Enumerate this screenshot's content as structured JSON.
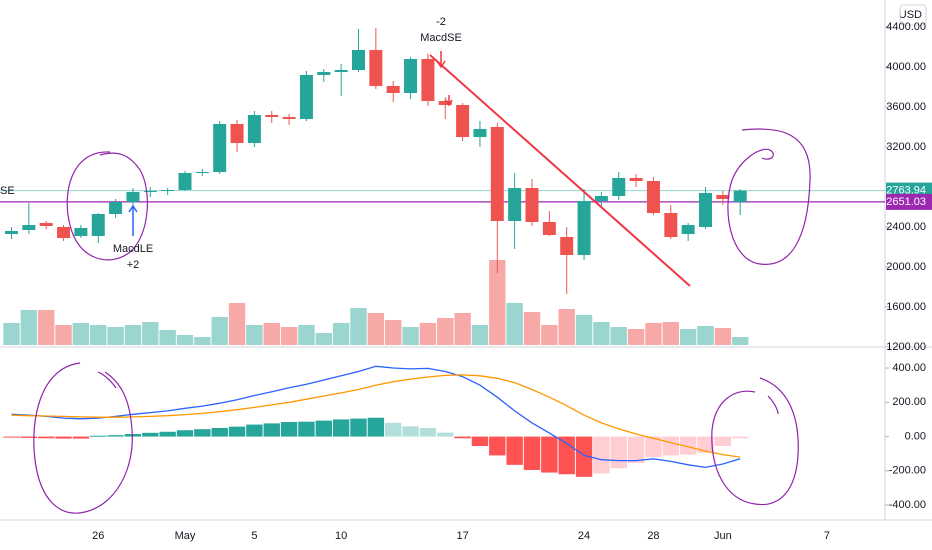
{
  "chart_data": {
    "type": "candlestick",
    "currency": "USD",
    "categories": [
      null,
      null,
      null,
      null,
      null,
      "26",
      null,
      null,
      null,
      null,
      "May",
      null,
      null,
      null,
      "5",
      null,
      null,
      null,
      null,
      "10",
      null,
      null,
      null,
      null,
      null,
      null,
      "17",
      null,
      null,
      null,
      null,
      null,
      null,
      "24",
      null,
      null,
      null,
      "28",
      null,
      null,
      null,
      "Jun",
      null,
      null,
      null,
      null,
      null,
      "7"
    ],
    "open": [
      2330,
      2370,
      2440,
      2400,
      2310,
      2310,
      2530,
      2650,
      2750,
      2760,
      2770,
      2940,
      2950,
      3430,
      3240,
      3520,
      3500,
      3480,
      3920,
      3950,
      3970,
      4170,
      3810,
      3740,
      4080,
      3660,
      3620,
      3300,
      3400,
      2460,
      2790,
      2450,
      2300,
      2120,
      2660,
      2710,
      2890,
      2860,
      2540,
      2330,
      2400,
      2720,
      2650,
      null,
      null,
      null,
      null,
      null
    ],
    "high": [
      2400,
      2640,
      2460,
      2420,
      2420,
      2540,
      2680,
      2790,
      2800,
      2790,
      2960,
      2980,
      3460,
      3470,
      3560,
      3560,
      3530,
      3960,
      3980,
      4030,
      4380,
      4390,
      3860,
      4100,
      4130,
      3700,
      3640,
      3460,
      3440,
      2940,
      2880,
      2560,
      2400,
      2780,
      2750,
      2950,
      2930,
      2900,
      2620,
      2440,
      2800,
      2760,
      2780,
      null,
      null,
      null,
      null,
      null
    ],
    "low": [
      2280,
      2330,
      2380,
      2260,
      2290,
      2240,
      2490,
      2620,
      2700,
      2720,
      2760,
      2910,
      2930,
      3150,
      3200,
      3440,
      3420,
      3460,
      3850,
      3710,
      3950,
      3780,
      3650,
      3680,
      3610,
      3480,
      3260,
      3200,
      1940,
      2180,
      2410,
      2310,
      1730,
      2070,
      2600,
      2670,
      2800,
      2520,
      2280,
      2260,
      2380,
      2620,
      2520,
      null,
      null,
      null,
      null,
      null
    ],
    "close": [
      2360,
      2420,
      2410,
      2290,
      2390,
      2530,
      2650,
      2750,
      2760,
      2770,
      2940,
      2950,
      3430,
      3240,
      3520,
      3500,
      3480,
      3920,
      3950,
      3970,
      4170,
      3810,
      3740,
      4080,
      3660,
      3620,
      3300,
      3380,
      2460,
      2790,
      2450,
      2320,
      2120,
      2660,
      2710,
      2890,
      2860,
      2540,
      2300,
      2420,
      2740,
      2680,
      2763.94,
      null,
      null,
      null,
      null,
      null
    ],
    "up_color": "#26a69a",
    "down_color": "#ef5350",
    "volume": {
      "up_color": "#9ad6cf",
      "down_color": "#f7a9a7",
      "values": [
        22,
        35,
        35,
        20,
        22,
        20,
        18,
        20,
        23,
        15,
        10,
        8,
        28,
        42,
        20,
        22,
        18,
        20,
        12,
        22,
        37,
        32,
        25,
        18,
        22,
        27,
        32,
        20,
        85,
        42,
        33,
        20,
        36,
        30,
        23,
        18,
        16,
        22,
        23,
        16,
        19,
        17,
        8,
        null,
        null,
        null,
        null,
        null
      ]
    },
    "ylim": [
      1220,
      4670
    ],
    "yticks": [
      {
        "value": 1200,
        "label": "1200.00"
      },
      {
        "value": 1600,
        "label": "1600.00"
      },
      {
        "value": 2000,
        "label": "2000.00"
      },
      {
        "value": 2400,
        "label": "2400.00"
      },
      {
        "value": 3200,
        "label": "3200.00"
      },
      {
        "value": 3600,
        "label": "3600.00"
      },
      {
        "value": 4000,
        "label": "4000.00"
      },
      {
        "value": 4400,
        "label": "4400.00"
      }
    ],
    "last_price": 2763.94,
    "last_price_color": "#26a69a",
    "level": 2651.03,
    "level_color": "#9c27b0",
    "strategy_label": "SE",
    "signals": [
      {
        "text": "MacdLE",
        "qty": "+2",
        "color": "#2962ff"
      },
      {
        "text": "MacdSE",
        "qty": -2,
        "color": "#f23645"
      }
    ],
    "macd": {
      "ylim": [
        -487,
        517
      ],
      "yticks": [
        {
          "value": 400,
          "label": "400.00"
        },
        {
          "value": 200,
          "label": "200.00"
        },
        {
          "value": 0,
          "label": "0.00"
        },
        {
          "value": -200,
          "label": "-200.00"
        },
        {
          "value": -400,
          "label": "-400.00"
        }
      ],
      "macd_line": {
        "color": "#2962ff",
        "values": [
          130,
          125,
          118,
          108,
          104,
          108,
          118,
          130,
          140,
          150,
          165,
          178,
          195,
          215,
          240,
          262,
          285,
          305,
          330,
          355,
          380,
          410,
          400,
          395,
          398,
          380,
          350,
          300,
          230,
          150,
          80,
          20,
          -40,
          -110,
          -135,
          -140,
          -140,
          -130,
          -145,
          -165,
          -180,
          -160,
          -130,
          null,
          null,
          null,
          null,
          null
        ]
      },
      "signal_line": {
        "color": "#ff9800",
        "values": [
          125,
          122,
          120,
          118,
          115,
          113,
          113,
          115,
          118,
          122,
          128,
          135,
          145,
          157,
          170,
          185,
          200,
          218,
          237,
          255,
          275,
          300,
          320,
          335,
          348,
          357,
          360,
          355,
          340,
          315,
          275,
          230,
          180,
          125,
          80,
          45,
          15,
          -10,
          -35,
          -60,
          -85,
          -105,
          -120,
          null,
          null,
          null,
          null,
          null
        ]
      },
      "histogram": {
        "colors": [
          "#26a69a",
          "#b2dfdb",
          "#ff5252",
          "#ffcdd2"
        ],
        "values": [
          -5,
          -8,
          -10,
          -12,
          -12,
          5,
          8,
          15,
          22,
          28,
          37,
          43,
          50,
          58,
          70,
          77,
          85,
          87,
          93,
          100,
          105,
          110,
          80,
          60,
          50,
          23,
          -10,
          -55,
          -110,
          -165,
          -195,
          -210,
          -220,
          -235,
          -215,
          -185,
          -155,
          -120,
          -110,
          -105,
          -95,
          -55,
          -10,
          null,
          null,
          null,
          null,
          null
        ]
      }
    }
  }
}
